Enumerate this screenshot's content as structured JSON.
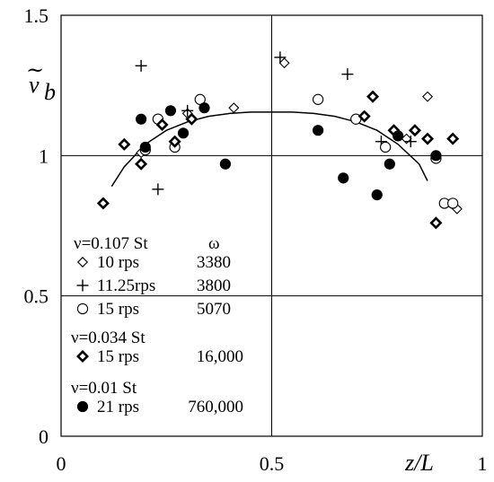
{
  "chart_data": {
    "type": "scatter",
    "xlabel": "z/L",
    "ylabel": "ṽ_b",
    "xlim": [
      0,
      1
    ],
    "ylim": [
      0,
      1.5
    ],
    "x_ticks": [
      "0",
      "0.5",
      "1"
    ],
    "y_ticks": [
      "0",
      "0.5",
      "1",
      "1.5"
    ],
    "grid_x": [
      0.5
    ],
    "grid_y": [
      0.5,
      1.0
    ],
    "legend": {
      "header1": "ν=0.107 St",
      "omega_header": "ω",
      "header2": "ν=0.034 St",
      "header3": "ν=0.01 St",
      "entries": [
        {
          "marker": "diamond-open",
          "label": "10 rps",
          "omega": "3380"
        },
        {
          "marker": "plus",
          "label": "11.25rps",
          "omega": "3800"
        },
        {
          "marker": "circle-open",
          "label": "15 rps",
          "omega": "5070"
        },
        {
          "marker": "diamond-bold",
          "label": "15 rps",
          "omega": "16,000"
        },
        {
          "marker": "circle-filled",
          "label": "21 rps",
          "omega": "760,000"
        }
      ]
    },
    "series": [
      {
        "marker": "diamond-open",
        "x": [
          0.19,
          0.3,
          0.41,
          0.53,
          0.7,
          0.82,
          0.87,
          0.94
        ],
        "y": [
          1.01,
          1.15,
          1.17,
          1.33,
          1.13,
          1.06,
          1.21,
          0.81
        ]
      },
      {
        "marker": "plus",
        "x": [
          0.19,
          0.23,
          0.3,
          0.52,
          0.68,
          0.76,
          0.83
        ],
        "y": [
          1.32,
          0.88,
          1.16,
          1.35,
          1.29,
          1.05,
          1.05
        ]
      },
      {
        "marker": "circle-open",
        "x": [
          0.2,
          0.23,
          0.27,
          0.33,
          0.61,
          0.7,
          0.77,
          0.89,
          0.91,
          0.93
        ],
        "y": [
          1.02,
          1.13,
          1.03,
          1.2,
          1.2,
          1.13,
          1.03,
          0.99,
          0.83,
          0.83
        ]
      },
      {
        "marker": "diamond-bold",
        "x": [
          0.1,
          0.15,
          0.19,
          0.24,
          0.27,
          0.31,
          0.72,
          0.74,
          0.79,
          0.84,
          0.87,
          0.89,
          0.93
        ],
        "y": [
          0.83,
          1.04,
          0.97,
          1.11,
          1.05,
          1.13,
          1.14,
          1.21,
          1.09,
          1.09,
          1.06,
          0.76,
          1.06
        ]
      },
      {
        "marker": "circle-filled",
        "x": [
          0.19,
          0.2,
          0.26,
          0.29,
          0.34,
          0.39,
          0.61,
          0.67,
          0.75,
          0.78,
          0.8,
          0.89
        ],
        "y": [
          1.13,
          1.03,
          1.16,
          1.08,
          1.17,
          0.97,
          1.09,
          0.92,
          0.86,
          0.97,
          1.07,
          1.0
        ]
      }
    ],
    "fit_curve": {
      "x": [
        0.12,
        0.15,
        0.2,
        0.25,
        0.3,
        0.35,
        0.4,
        0.45,
        0.5,
        0.55,
        0.6,
        0.65,
        0.7,
        0.75,
        0.8,
        0.85,
        0.87
      ],
      "y": [
        0.89,
        0.96,
        1.04,
        1.09,
        1.12,
        1.14,
        1.15,
        1.155,
        1.155,
        1.155,
        1.15,
        1.14,
        1.12,
        1.09,
        1.04,
        0.97,
        0.91
      ]
    }
  }
}
